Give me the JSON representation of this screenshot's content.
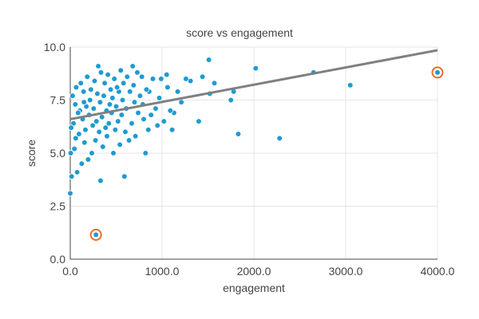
{
  "chart_data": {
    "type": "scatter",
    "title": "score vs engagement",
    "xlabel": "engagement",
    "ylabel": "score",
    "xlim": [
      0,
      4000
    ],
    "ylim": [
      0,
      10
    ],
    "x_ticks": [
      "0.0",
      "1000.0",
      "2000.0",
      "3000.0",
      "4000.0"
    ],
    "y_ticks": [
      "0.0",
      "2.5",
      "5.0",
      "7.5",
      "10.0"
    ],
    "grid": true,
    "colors": {
      "points": "#1f9bd1",
      "trend": "#808080",
      "highlight": "#ef6c2c"
    },
    "trendline": {
      "x": [
        0,
        4000
      ],
      "y": [
        6.6,
        9.85
      ]
    },
    "highlighted": [
      {
        "x": 280,
        "y": 1.15
      },
      {
        "x": 4000,
        "y": 8.8
      }
    ],
    "series": [
      {
        "points": [
          [
            280,
            1.15
          ],
          [
            4000,
            8.8
          ],
          [
            3050,
            8.2
          ],
          [
            2650,
            8.8
          ],
          [
            2280,
            5.7
          ],
          [
            2020,
            9.0
          ],
          [
            1830,
            5.9
          ],
          [
            1780,
            7.9
          ],
          [
            1750,
            7.5
          ],
          [
            1570,
            8.3
          ],
          [
            1510,
            9.4
          ],
          [
            1520,
            7.8
          ],
          [
            1440,
            8.6
          ],
          [
            1400,
            6.5
          ],
          [
            1310,
            8.4
          ],
          [
            1260,
            8.5
          ],
          [
            1210,
            7.4
          ],
          [
            1170,
            7.9
          ],
          [
            1130,
            6.9
          ],
          [
            1110,
            6.1
          ],
          [
            1090,
            7.0
          ],
          [
            1060,
            8.1
          ],
          [
            1050,
            8.7
          ],
          [
            1020,
            6.5
          ],
          [
            990,
            8.5
          ],
          [
            970,
            7.6
          ],
          [
            950,
            6.3
          ],
          [
            930,
            7.1
          ],
          [
            900,
            8.5
          ],
          [
            880,
            6.8
          ],
          [
            860,
            7.9
          ],
          [
            850,
            6.1
          ],
          [
            830,
            8.0
          ],
          [
            820,
            5.0
          ],
          [
            800,
            6.6
          ],
          [
            790,
            7.3
          ],
          [
            780,
            8.6
          ],
          [
            760,
            7.7
          ],
          [
            740,
            6.9
          ],
          [
            730,
            8.8
          ],
          [
            710,
            5.8
          ],
          [
            700,
            7.4
          ],
          [
            690,
            8.2
          ],
          [
            680,
            9.1
          ],
          [
            670,
            6.4
          ],
          [
            650,
            7.9
          ],
          [
            640,
            5.6
          ],
          [
            620,
            8.6
          ],
          [
            610,
            7.1
          ],
          [
            600,
            6.0
          ],
          [
            590,
            3.9
          ],
          [
            580,
            8.3
          ],
          [
            570,
            7.5
          ],
          [
            560,
            6.8
          ],
          [
            550,
            8.9
          ],
          [
            540,
            5.4
          ],
          [
            530,
            7.9
          ],
          [
            520,
            6.5
          ],
          [
            510,
            8.1
          ],
          [
            500,
            7.2
          ],
          [
            490,
            6.1
          ],
          [
            480,
            8.5
          ],
          [
            470,
            5.0
          ],
          [
            460,
            7.6
          ],
          [
            450,
            6.9
          ],
          [
            440,
            8.0
          ],
          [
            430,
            7.3
          ],
          [
            420,
            6.4
          ],
          [
            410,
            8.7
          ],
          [
            400,
            5.8
          ],
          [
            395,
            7.0
          ],
          [
            385,
            6.2
          ],
          [
            375,
            8.3
          ],
          [
            365,
            7.7
          ],
          [
            355,
            5.3
          ],
          [
            345,
            6.7
          ],
          [
            335,
            8.8
          ],
          [
            325,
            7.4
          ],
          [
            315,
            6.0
          ],
          [
            305,
            9.1
          ],
          [
            295,
            7.8
          ],
          [
            285,
            6.5
          ],
          [
            275,
            5.6
          ],
          [
            265,
            8.4
          ],
          [
            255,
            7.1
          ],
          [
            245,
            6.3
          ],
          [
            235,
            5.0
          ],
          [
            225,
            8.0
          ],
          [
            215,
            7.5
          ],
          [
            205,
            6.8
          ],
          [
            195,
            4.7
          ],
          [
            185,
            8.6
          ],
          [
            175,
            7.2
          ],
          [
            165,
            6.1
          ],
          [
            155,
            5.5
          ],
          [
            145,
            7.9
          ],
          [
            135,
            6.6
          ],
          [
            125,
            4.5
          ],
          [
            115,
            8.3
          ],
          [
            105,
            7.0
          ],
          [
            95,
            5.9
          ],
          [
            85,
            6.9
          ],
          [
            75,
            4.1
          ],
          [
            65,
            8.1
          ],
          [
            55,
            7.3
          ],
          [
            45,
            5.2
          ],
          [
            35,
            6.4
          ],
          [
            25,
            7.7
          ],
          [
            15,
            3.9
          ],
          [
            10,
            6.2
          ],
          [
            5,
            5.0
          ],
          [
            0,
            3.1
          ],
          [
            330,
            3.7
          ],
          [
            60,
            5.7
          ],
          [
            150,
            7.4
          ]
        ]
      }
    ]
  }
}
